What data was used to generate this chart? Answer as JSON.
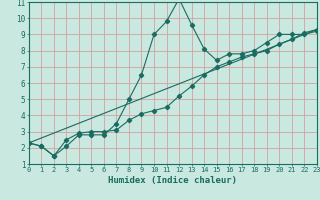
{
  "xlabel": "Humidex (Indice chaleur)",
  "bg_color": "#c8e8e0",
  "line_color": "#1a6b60",
  "grid_color": "#d4a0a0",
  "xlim": [
    0,
    23
  ],
  "ylim": [
    1,
    11
  ],
  "xticks": [
    0,
    1,
    2,
    3,
    4,
    5,
    6,
    7,
    8,
    9,
    10,
    11,
    12,
    13,
    14,
    15,
    16,
    17,
    18,
    19,
    20,
    21,
    22,
    23
  ],
  "yticks": [
    1,
    2,
    3,
    4,
    5,
    6,
    7,
    8,
    9,
    10,
    11
  ],
  "curve1_x": [
    0,
    1,
    2,
    3,
    4,
    5,
    6,
    7,
    8,
    9,
    10,
    11,
    12,
    13,
    14,
    15,
    16,
    17,
    18,
    19,
    20,
    21,
    22,
    23
  ],
  "curve1_y": [
    2.3,
    2.1,
    1.5,
    2.1,
    2.8,
    2.8,
    2.8,
    3.5,
    5.0,
    6.5,
    9.0,
    9.8,
    11.2,
    9.6,
    8.1,
    7.4,
    7.8,
    7.8,
    8.0,
    8.5,
    9.0,
    9.0,
    9.0,
    9.2
  ],
  "curve2_x": [
    0,
    1,
    2,
    3,
    4,
    5,
    6,
    7,
    8,
    9,
    10,
    11,
    12,
    13,
    14,
    15,
    16,
    17,
    18,
    19,
    20,
    21,
    22,
    23
  ],
  "curve2_y": [
    2.3,
    2.1,
    1.5,
    2.5,
    2.9,
    3.0,
    3.0,
    3.1,
    3.7,
    4.1,
    4.3,
    4.5,
    5.2,
    5.8,
    6.5,
    7.0,
    7.3,
    7.6,
    7.8,
    8.0,
    8.4,
    8.7,
    9.1,
    9.3
  ],
  "line_x": [
    0,
    23
  ],
  "line_y": [
    2.3,
    9.3
  ]
}
